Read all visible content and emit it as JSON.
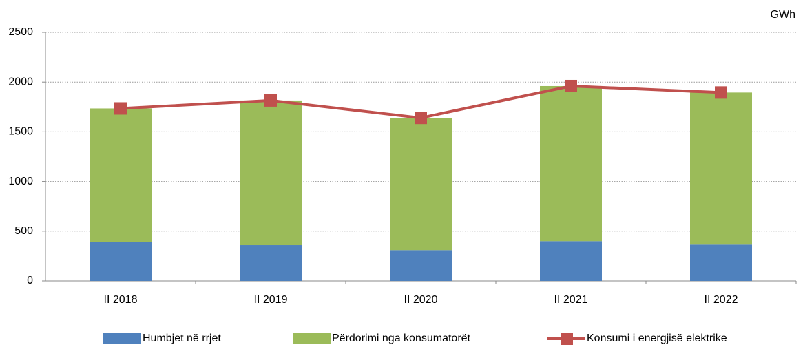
{
  "chart_data": {
    "type": "bar",
    "stacked": true,
    "unit_label": "GWh",
    "categories": [
      "II 2018",
      "II 2019",
      "II 2020",
      "II 2021",
      "II 2022"
    ],
    "series": [
      {
        "name": "Humbjet në rrjet",
        "type": "bar",
        "color": "#4f81bd",
        "values": [
          390,
          360,
          310,
          400,
          365
        ]
      },
      {
        "name": "Përdorimi nga konsumatorët",
        "type": "bar",
        "color": "#9bbb59",
        "values": [
          1345,
          1455,
          1330,
          1560,
          1530
        ]
      },
      {
        "name": "Konsumi i energjisë elektrike",
        "type": "line",
        "color": "#c0504d",
        "values": [
          1735,
          1815,
          1640,
          1960,
          1895
        ]
      }
    ],
    "ylim": [
      0,
      2500
    ],
    "yticks": [
      0,
      500,
      1000,
      1500,
      2000,
      2500
    ],
    "grid": true,
    "legend": "bottom"
  }
}
